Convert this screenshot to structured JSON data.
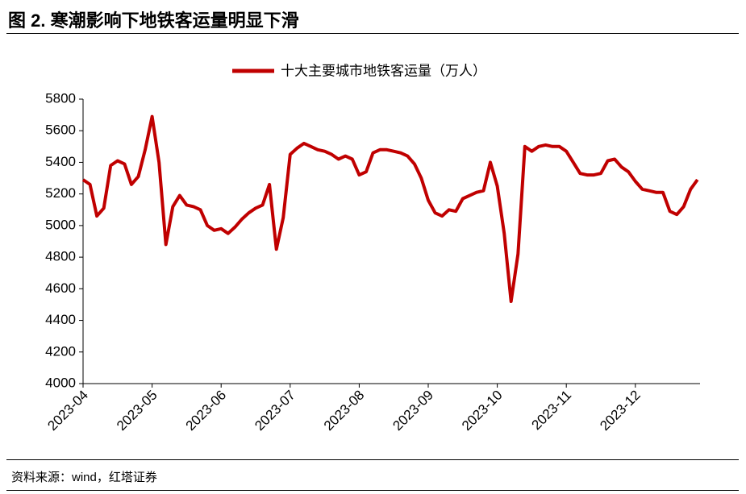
{
  "header": {
    "title": "图 2. 寒潮影响下地铁客运量明显下滑"
  },
  "chart_data": {
    "type": "line",
    "categories": [
      "2023-04",
      null,
      null,
      null,
      null,
      null,
      null,
      null,
      null,
      null,
      "2023-05",
      null,
      null,
      null,
      null,
      null,
      null,
      null,
      null,
      null,
      "2023-06",
      null,
      null,
      null,
      null,
      null,
      null,
      null,
      null,
      null,
      "2023-07",
      null,
      null,
      null,
      null,
      null,
      null,
      null,
      null,
      null,
      "2023-08",
      null,
      null,
      null,
      null,
      null,
      null,
      null,
      null,
      null,
      "2023-09",
      null,
      null,
      null,
      null,
      null,
      null,
      null,
      null,
      null,
      "2023-10",
      null,
      null,
      null,
      null,
      null,
      null,
      null,
      null,
      null,
      "2023-11",
      null,
      null,
      null,
      null,
      null,
      null,
      null,
      null,
      null,
      "2023-12",
      null,
      null,
      null,
      null,
      null,
      null,
      null,
      null,
      null
    ],
    "series": [
      {
        "name": "十大主要城市地铁客运量（万人）",
        "color": "#c00000",
        "values": [
          5290,
          5260,
          5060,
          5110,
          5380,
          5410,
          5390,
          5260,
          5310,
          5480,
          5690,
          5400,
          4880,
          5120,
          5190,
          5130,
          5120,
          5100,
          5000,
          4970,
          4980,
          4950,
          4990,
          5040,
          5080,
          5110,
          5130,
          5260,
          4850,
          5050,
          5450,
          5490,
          5520,
          5500,
          5480,
          5470,
          5450,
          5420,
          5440,
          5420,
          5320,
          5340,
          5460,
          5480,
          5480,
          5470,
          5460,
          5440,
          5390,
          5300,
          5160,
          5080,
          5060,
          5100,
          5090,
          5170,
          5190,
          5210,
          5220,
          5400,
          5250,
          4950,
          4520,
          4820,
          5500,
          5470,
          5500,
          5510,
          5500,
          5500,
          5470,
          5400,
          5330,
          5320,
          5320,
          5330,
          5410,
          5420,
          5370,
          5340,
          5280,
          5230,
          5220,
          5210,
          5210,
          5090,
          5070,
          5120,
          5230,
          5290
        ]
      }
    ],
    "ylim": [
      4000,
      5800
    ],
    "yticks": [
      4000,
      4200,
      4400,
      4600,
      4800,
      5000,
      5200,
      5400,
      5600,
      5800
    ],
    "legend": "top"
  },
  "footer": {
    "source": "资料来源：wind，红塔证券"
  }
}
